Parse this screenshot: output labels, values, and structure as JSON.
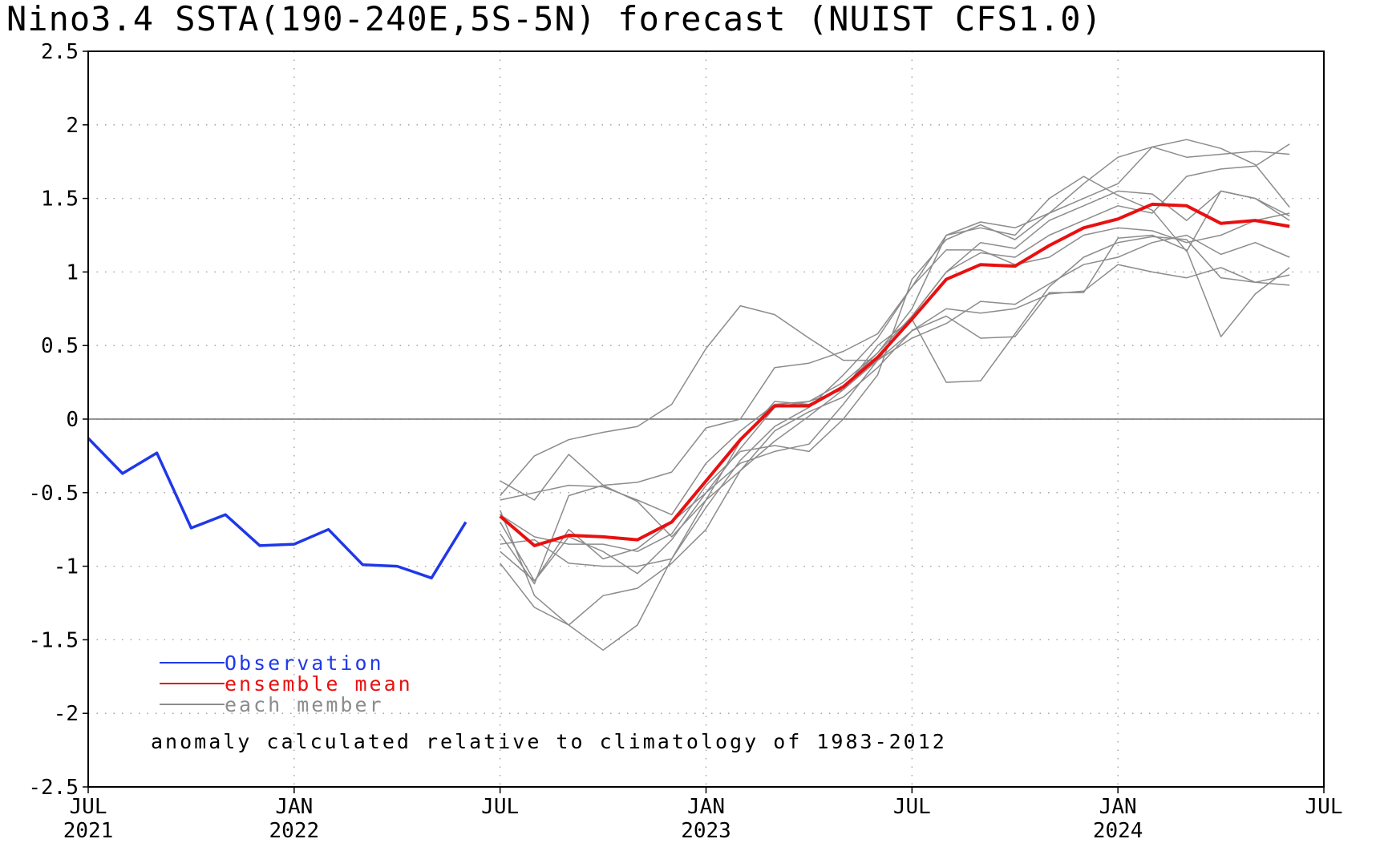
{
  "chart_data": {
    "type": "line",
    "title": "Nino3.4 SSTA(190-240E,5S-5N) forecast (NUIST CFS1.0)",
    "ylim": [
      -2.5,
      2.5
    ],
    "yticks": [
      "2.5",
      "2",
      "1.5",
      "1",
      "0.5",
      "0",
      "-0.5",
      "-1",
      "-1.5",
      "-2",
      "-2.5"
    ],
    "xlim": [
      "2021-07",
      "2024-07"
    ],
    "xticks": [
      {
        "x": "2021-07",
        "month": "JUL",
        "year": "2021"
      },
      {
        "x": "2022-01",
        "month": "JAN",
        "year": "2022"
      },
      {
        "x": "2022-07",
        "month": "JUL",
        "year": ""
      },
      {
        "x": "2023-01",
        "month": "JAN",
        "year": "2023"
      },
      {
        "x": "2023-07",
        "month": "JUL",
        "year": ""
      },
      {
        "x": "2024-01",
        "month": "JAN",
        "year": "2024"
      },
      {
        "x": "2024-07",
        "month": "JUL",
        "year": ""
      }
    ],
    "grid": true,
    "zero_line": true,
    "legend_placement": "bottom-left",
    "note": "anomaly calculated relative to climatology of 1983-2012",
    "observation": {
      "name": "Observation",
      "color": "#2038e8",
      "x": [
        "2021-07",
        "2021-08",
        "2021-09",
        "2021-10",
        "2021-11",
        "2021-12",
        "2022-01",
        "2022-02",
        "2022-03",
        "2022-04",
        "2022-05",
        "2022-06"
      ],
      "values": [
        -0.13,
        -0.37,
        -0.23,
        -0.74,
        -0.65,
        -0.86,
        -0.85,
        -0.75,
        -0.99,
        -1.0,
        -1.08,
        -0.7
      ]
    },
    "ensemble_mean": {
      "name": "ensemble mean",
      "color": "#e81010",
      "x": [
        "2022-07",
        "2022-08",
        "2022-09",
        "2022-10",
        "2022-11",
        "2022-12",
        "2023-01",
        "2023-02",
        "2023-03",
        "2023-04",
        "2023-05",
        "2023-06",
        "2023-07",
        "2023-08",
        "2023-09",
        "2023-10",
        "2023-11",
        "2023-12",
        "2024-01",
        "2024-02",
        "2024-03",
        "2024-04",
        "2024-05",
        "2024-06"
      ],
      "values": [
        -0.66,
        -0.86,
        -0.79,
        -0.8,
        -0.82,
        -0.7,
        -0.42,
        -0.14,
        0.09,
        0.09,
        0.22,
        0.42,
        0.68,
        0.95,
        1.05,
        1.04,
        1.18,
        1.3,
        1.36,
        1.46,
        1.45,
        1.33,
        1.35,
        1.31
      ]
    },
    "members": {
      "name": "each member",
      "color": "#8c8c8c",
      "x": [
        "2022-07",
        "2022-08",
        "2022-09",
        "2022-10",
        "2022-11",
        "2022-12",
        "2023-01",
        "2023-02",
        "2023-03",
        "2023-04",
        "2023-05",
        "2023-06",
        "2023-07",
        "2023-08",
        "2023-09",
        "2023-10",
        "2023-11",
        "2023-12",
        "2024-01",
        "2024-02",
        "2024-03",
        "2024-04",
        "2024-05",
        "2024-06"
      ],
      "series": [
        [
          -0.42,
          -0.55,
          -0.24,
          -0.45,
          -0.43,
          -0.36,
          -0.06,
          0.0,
          0.35,
          0.38,
          0.46,
          0.58,
          0.9,
          1.25,
          1.34,
          1.3,
          1.4,
          1.5,
          1.6,
          1.85,
          1.9,
          1.84,
          1.73,
          1.44
        ],
        [
          -0.52,
          -0.25,
          -0.14,
          -0.09,
          -0.05,
          0.1,
          0.48,
          0.77,
          0.71,
          0.55,
          0.4,
          0.4,
          0.55,
          0.65,
          0.8,
          0.78,
          0.92,
          1.05,
          1.1,
          1.2,
          1.25,
          1.12,
          1.2,
          1.1
        ],
        [
          -0.55,
          -0.5,
          -0.45,
          -0.46,
          -0.55,
          -0.65,
          -0.3,
          -0.08,
          0.1,
          0.12,
          0.2,
          0.4,
          0.7,
          1.0,
          1.2,
          1.16,
          1.35,
          1.45,
          1.55,
          1.53,
          1.35,
          1.55,
          1.5,
          1.35
        ],
        [
          -0.65,
          -0.8,
          -0.85,
          -0.85,
          -0.9,
          -0.78,
          -0.45,
          -0.22,
          -0.18,
          -0.22,
          0.0,
          0.3,
          0.95,
          1.22,
          1.32,
          1.22,
          1.4,
          1.6,
          1.78,
          1.85,
          1.78,
          1.8,
          1.82,
          1.8
        ],
        [
          -0.7,
          -1.1,
          -0.75,
          -0.95,
          -0.88,
          -0.7,
          -0.5,
          -0.2,
          0.08,
          0.12,
          0.25,
          0.45,
          0.7,
          1.0,
          1.13,
          1.1,
          1.25,
          1.35,
          1.45,
          1.4,
          1.65,
          1.7,
          1.72,
          1.87
        ],
        [
          -0.78,
          -1.12,
          -0.52,
          -0.45,
          -0.56,
          -0.8,
          -0.55,
          -0.35,
          -0.08,
          0.05,
          0.15,
          0.35,
          0.6,
          0.75,
          0.72,
          0.75,
          0.85,
          0.87,
          1.05,
          1.0,
          0.96,
          1.03,
          0.93,
          0.98
        ],
        [
          -0.85,
          -0.82,
          -0.98,
          -1.0,
          -1.0,
          -0.95,
          -0.6,
          -0.28,
          -0.05,
          0.08,
          0.3,
          0.55,
          0.9,
          1.15,
          1.15,
          1.05,
          1.1,
          1.25,
          1.3,
          1.28,
          1.2,
          1.25,
          1.35,
          1.4
        ],
        [
          -0.9,
          -1.1,
          -0.8,
          -0.9,
          -1.05,
          -0.82,
          -0.5,
          -0.3,
          -0.22,
          -0.17,
          0.1,
          0.4,
          0.6,
          0.7,
          0.55,
          0.56,
          0.86,
          0.86,
          1.23,
          1.25,
          1.15,
          0.56,
          0.85,
          1.03
        ],
        [
          -0.98,
          -1.28,
          -1.4,
          -1.2,
          -1.15,
          -0.98,
          -0.75,
          -0.35,
          -0.15,
          0.02,
          0.2,
          0.5,
          0.68,
          0.25,
          0.26,
          0.58,
          0.9,
          1.1,
          1.2,
          1.24,
          1.22,
          0.96,
          0.93,
          0.91
        ],
        [
          -0.62,
          -1.2,
          -1.4,
          -1.57,
          -1.4,
          -0.95,
          -0.55,
          -0.15,
          0.12,
          0.1,
          0.22,
          0.45,
          0.75,
          1.25,
          1.3,
          1.25,
          1.5,
          1.65,
          1.52,
          1.42,
          1.14,
          1.55,
          1.5,
          1.38
        ]
      ]
    }
  },
  "legend": {
    "observation_label": "Observation",
    "mean_label": "ensemble mean",
    "member_label": "each member"
  }
}
